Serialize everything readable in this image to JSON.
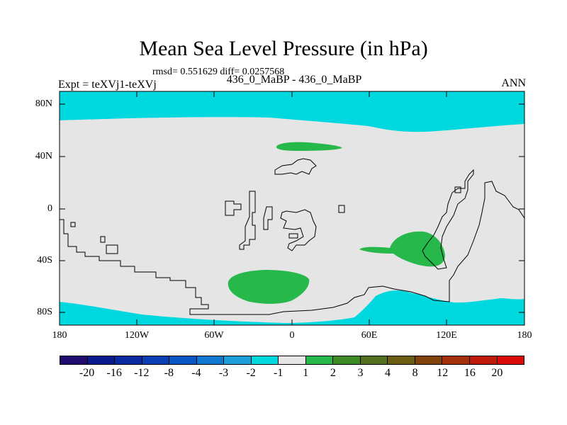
{
  "title": "Mean Sea Level Pressure (in hPa)",
  "stats": "rmsd= 0.551629 diff= 0.0257568",
  "expt": "Expt = teXVj1-teXVj",
  "pair": "436_0_MaBP - 436_0_MaBP",
  "season": "ANN",
  "lat_labels": [
    "80N",
    "40N",
    "0",
    "40S",
    "80S"
  ],
  "lon_labels": [
    "180",
    "120W",
    "60W",
    "0",
    "60E",
    "120E",
    "180"
  ],
  "colorbar": {
    "labels": [
      "-20",
      "-16",
      "-12",
      "-8",
      "-4",
      "-3",
      "-2",
      "-1",
      "1",
      "2",
      "3",
      "4",
      "8",
      "12",
      "16",
      "20"
    ],
    "colors": [
      "#1f0a6e",
      "#0b1a8c",
      "#0a2aa0",
      "#0b3eb3",
      "#0a56c4",
      "#1278cf",
      "#1e9ed8",
      "#00d8e0",
      "#e5e5e5",
      "#26b84a",
      "#3d8a25",
      "#527020",
      "#6a5c10",
      "#82420c",
      "#a3320c",
      "#be1a0a",
      "#d80a0a"
    ]
  },
  "map_colors": {
    "neutral": "#e5e5e5",
    "low": "#00d8e0",
    "high": "#26b84a",
    "coast": "#000000"
  }
}
